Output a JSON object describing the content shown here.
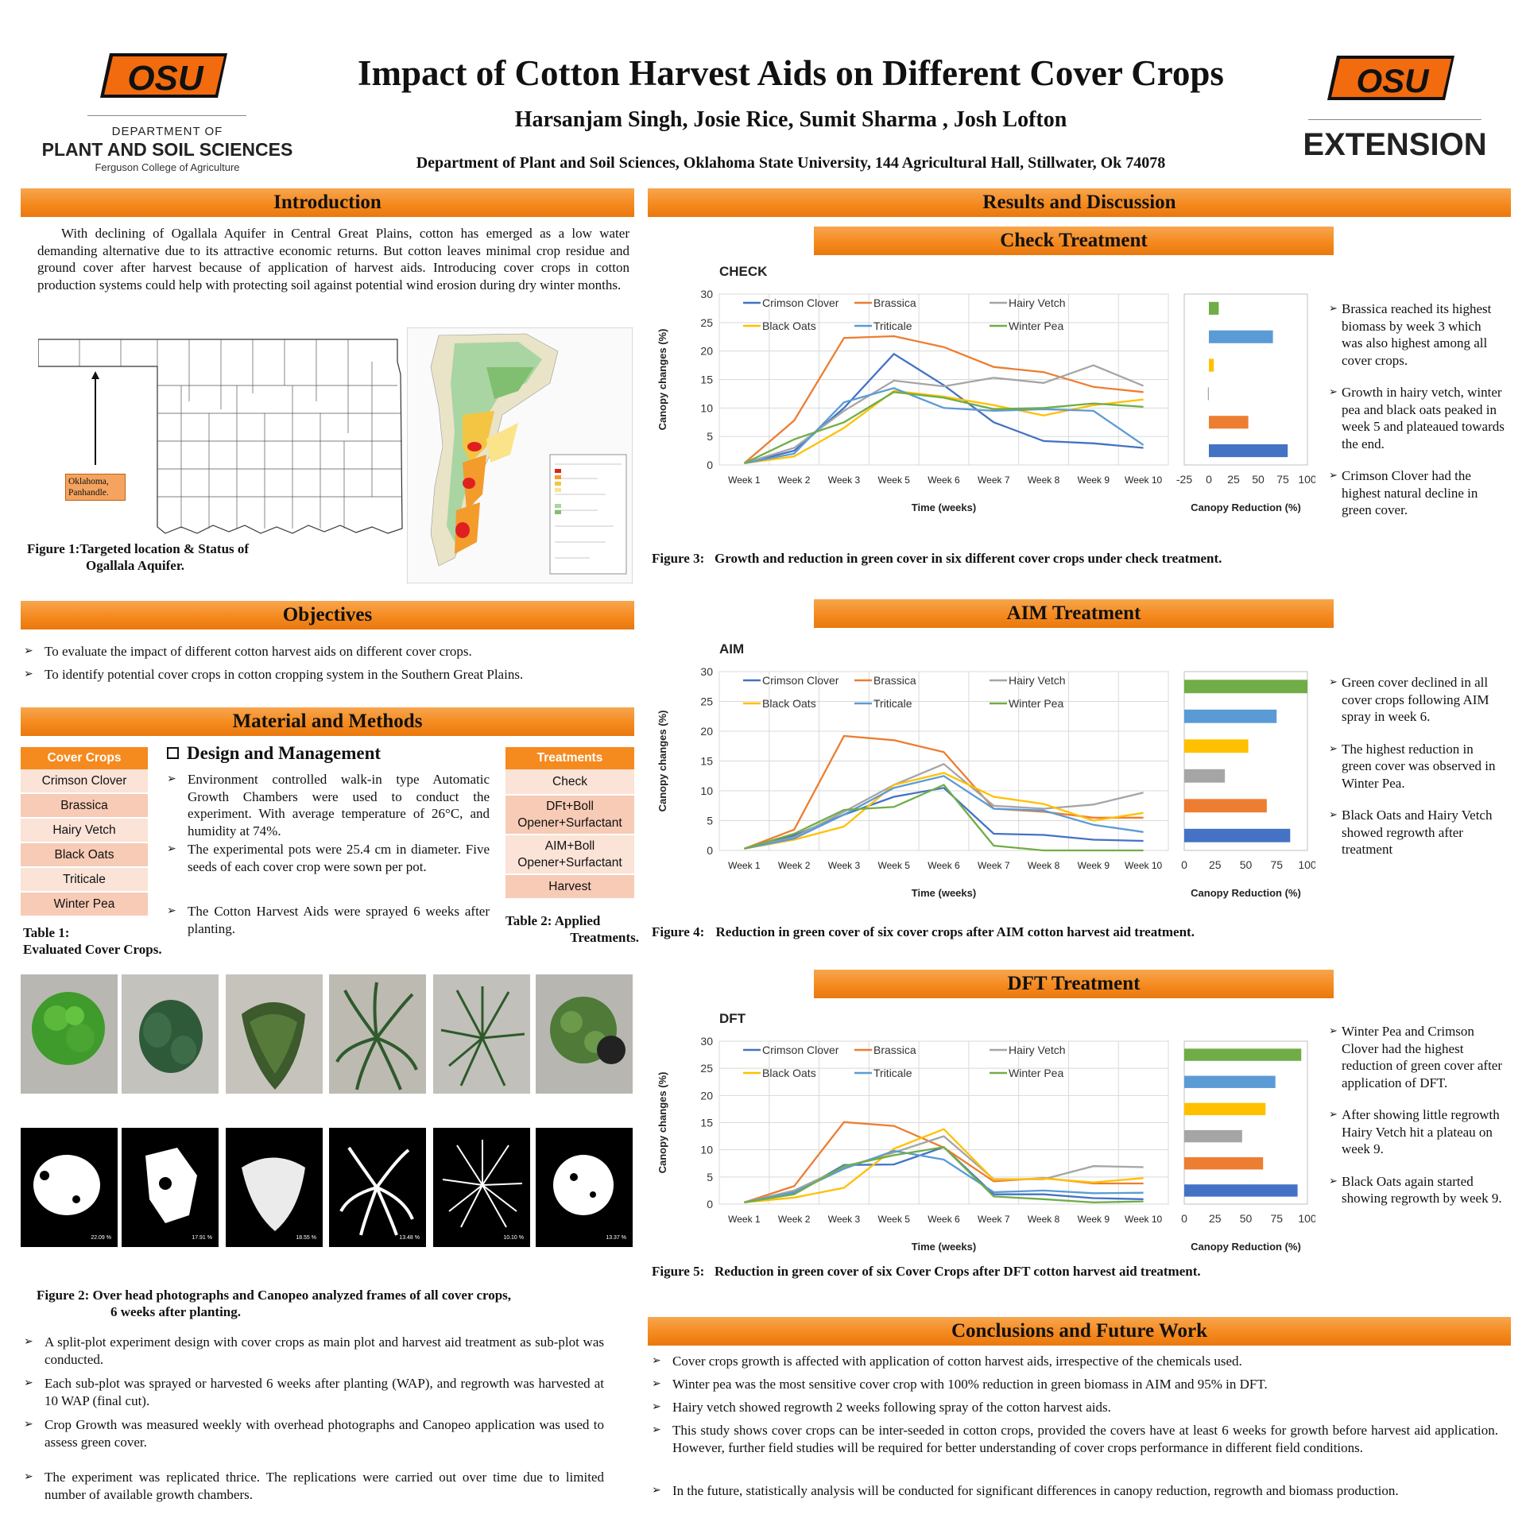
{
  "header": {
    "title": "Impact of Cotton Harvest Aids on Different Cover Crops",
    "authors": "Harsanjam Singh, Josie Rice, Sumit Sharma , Josh Lofton",
    "affiliation": "Department of Plant and Soil Sciences, Oklahoma State University, 144 Agricultural Hall, Stillwater, Ok 74078",
    "logo_left": {
      "mark": "OSU",
      "dept_line1": "DEPARTMENT OF",
      "dept_line2": "PLANT AND SOIL SCIENCES",
      "dept_line3": "Ferguson College of Agriculture"
    },
    "logo_right": {
      "mark": "OSU",
      "word": "EXTENSION"
    }
  },
  "colors": {
    "accent": "#f58a1f",
    "osu_orange": "#f26b0f",
    "chart_blue": "#4472c4",
    "chart_orange": "#ed7d31",
    "chart_gray": "#a5a5a5",
    "chart_yellow": "#ffc000",
    "chart_lightblue": "#5b9bd5",
    "chart_green": "#70ad47"
  },
  "introduction": {
    "heading": "Introduction",
    "text": "With declining of Ogallala Aquifer in Central Great Plains, cotton has emerged as a low water demanding alternative due to its attractive economic returns. But cotton leaves minimal crop residue and ground cover after harvest because of application of harvest aids. Introducing cover crops in cotton production systems could help with protecting soil against potential wind erosion during dry winter months.",
    "map_label": "Oklahoma, Panhandle.",
    "figure1_caption_line1": "Figure 1:Targeted location & Status of",
    "figure1_caption_line2": "Ogallala Aquifer."
  },
  "objectives": {
    "heading": "Objectives",
    "items": [
      "To evaluate the impact of different cotton harvest aids on different cover crops.",
      "To identify potential cover crops in cotton cropping system in the Southern Great Plains."
    ]
  },
  "methods": {
    "heading": "Material and Methods",
    "table1": {
      "header": "Cover Crops",
      "rows": [
        "Crimson Clover",
        "Brassica",
        "Hairy Vetch",
        "Black Oats",
        "Triticale",
        "Winter Pea"
      ],
      "caption_line1": "Table 1:",
      "caption_line2": "Evaluated Cover Crops."
    },
    "design_heading": "Design and Management",
    "design_items": [
      "Environment controlled walk-in type Automatic Growth Chambers were used to conduct the experiment. With average temperature of 26°C, and humidity at 74%.",
      "The experimental pots were 25.4 cm in diameter. Five seeds of each cover crop were sown per pot.",
      "The Cotton Harvest Aids were sprayed 6 weeks after planting."
    ],
    "table2": {
      "header": "Treatments",
      "rows": [
        "Check",
        "DFt+Boll Opener+Surfactant",
        "AIM+Boll Opener+Surfactant",
        "Harvest"
      ],
      "caption_line1": "Table 2: Applied",
      "caption_line2": "Treatments."
    },
    "canopeo_values": [
      "22.09 %",
      "17.91 %",
      "18.55 %",
      "13.48 %",
      "10.10 %",
      "13.37 %"
    ],
    "figure2_caption_line1": "Figure 2: Over head photographs and Canopeo analyzed frames of all cover crops,",
    "figure2_caption_line2": "6 weeks after planting.",
    "items": [
      "A split-plot experiment design with cover crops as main plot and harvest aid treatment as sub-plot was conducted.",
      "Each sub-plot was sprayed or harvested 6 weeks after planting (WAP), and regrowth was harvested at 10 WAP (final cut).",
      "Crop Growth was measured weekly with overhead photographs and Canopeo application was used to assess green cover.",
      "The experiment was replicated thrice. The replications were carried out over time due to limited number of available growth chambers."
    ]
  },
  "results": {
    "heading": "Results and Discussion",
    "check": {
      "heading": "Check Treatment",
      "figure_caption": "Figure 3:   Growth and reduction in green cover in six different cover crops under check treatment.",
      "notes": [
        "Brassica reached its highest biomass by week 3 which was also highest among all cover crops.",
        "Growth in hairy vetch, winter pea and black oats peaked in week 5 and plateaued towards the end.",
        "Crimson Clover had the highest natural decline in green cover."
      ]
    },
    "aim": {
      "heading": "AIM Treatment",
      "figure_caption_label": "Figure 4:",
      "figure_caption_text": "Reduction in green cover of six cover crops after AIM cotton harvest aid treatment.",
      "notes": [
        "Green cover declined in all cover crops following AIM spray in week 6.",
        "The highest reduction in green cover was observed in Winter Pea.",
        "Black Oats and Hairy Vetch showed regrowth after treatment"
      ]
    },
    "dft": {
      "heading": "DFT Treatment",
      "figure_caption": "Figure 5:   Reduction in green cover of six Cover Crops after DFT cotton harvest aid treatment.",
      "notes": [
        "Winter Pea and Crimson Clover had the highest reduction of green cover after application of DFT.",
        "After showing little regrowth Hairy Vetch hit a plateau on week 9.",
        "Black Oats again started showing regrowth by week 9."
      ]
    }
  },
  "conclusions": {
    "heading": "Conclusions and Future Work",
    "items": [
      "Cover crops growth is affected with application of cotton harvest aids, irrespective of the chemicals used.",
      "Winter pea was the most sensitive cover crop with 100% reduction in green biomass in AIM and 95% in DFT.",
      "Hairy vetch showed regrowth 2 weeks following spray of the cotton harvest aids.",
      "This study shows cover crops can be inter-seeded in cotton crops, provided the covers have at least 6 weeks for growth before harvest aid application. However, further field studies will be required for better understanding of cover crops performance in different field conditions.",
      "In the future, statistically analysis will be conducted for significant differences in canopy reduction, regrowth and biomass production."
    ]
  },
  "chart_data": [
    {
      "type": "line",
      "title": "CHECK",
      "xlabel": "Time (weeks)",
      "ylabel": "Canopy changes (%)",
      "ylim": [
        0,
        30
      ],
      "yticks": [
        0,
        5,
        10,
        15,
        20,
        25,
        30
      ],
      "grid": true,
      "legend": "top",
      "categories": [
        "Week 1",
        "Week 2",
        "Week 3",
        "Week 5",
        "Week 6",
        "Week 7",
        "Week 8",
        "Week 9",
        "Week 10"
      ],
      "series": [
        {
          "name": "Crimson Clover",
          "color": "#4472c4",
          "values": [
            0.3,
            2.5,
            10,
            19.5,
            14,
            7.5,
            4.2,
            3.8,
            3
          ]
        },
        {
          "name": "Brassica",
          "color": "#ed7d31",
          "values": [
            0.3,
            7.8,
            22.3,
            22.6,
            20.7,
            17.2,
            16.3,
            13.7,
            12.8
          ]
        },
        {
          "name": "Hairy Vetch",
          "color": "#a5a5a5",
          "values": [
            0.3,
            3,
            9.5,
            14.8,
            13.8,
            15.3,
            14.4,
            17.5,
            13.9
          ]
        },
        {
          "name": "Black Oats",
          "color": "#ffc000",
          "values": [
            0.3,
            1.5,
            6.5,
            13,
            12,
            10.5,
            8.7,
            10.5,
            11.5
          ]
        },
        {
          "name": "Triticale",
          "color": "#5b9bd5",
          "values": [
            0.3,
            2,
            11,
            13.5,
            10,
            9.5,
            9.8,
            9.5,
            3.5
          ]
        },
        {
          "name": "Winter Pea",
          "color": "#70ad47",
          "values": [
            0.3,
            4.5,
            7.5,
            12.8,
            11.8,
            9.8,
            10,
            10.8,
            10.2
          ]
        }
      ]
    },
    {
      "type": "bar",
      "orientation": "horizontal",
      "xlabel": "Canopy Reduction (%)",
      "xlim": [
        -25,
        100
      ],
      "xticks": [
        -25,
        0,
        25,
        50,
        75,
        100
      ],
      "categories": [
        "Winter Pea",
        "Triticale",
        "Black Oats",
        "Hairy Vetch",
        "Brassica",
        "Crimson Clover"
      ],
      "colors": [
        "#70ad47",
        "#5b9bd5",
        "#ffc000",
        "#a5a5a5",
        "#ed7d31",
        "#4472c4"
      ],
      "values": [
        10,
        65,
        5,
        -1,
        40,
        80
      ]
    },
    {
      "type": "line",
      "title": "AIM",
      "xlabel": "Time (weeks)",
      "ylabel": "Canopy changes (%)",
      "ylim": [
        0,
        30
      ],
      "yticks": [
        0,
        5,
        10,
        15,
        20,
        25,
        30
      ],
      "grid": true,
      "legend": "top",
      "categories": [
        "Week 1",
        "Week 2",
        "Week 3",
        "Week 5",
        "Week 6",
        "Week 7",
        "Week 8",
        "Week 9",
        "Week 10"
      ],
      "series": [
        {
          "name": "Crimson Clover",
          "color": "#4472c4",
          "values": [
            0.3,
            2.5,
            6,
            9,
            10.5,
            2.8,
            2.6,
            1.8,
            1.6
          ]
        },
        {
          "name": "Brassica",
          "color": "#ed7d31",
          "values": [
            0.3,
            3.5,
            19.2,
            18.5,
            16.5,
            7,
            6.5,
            5.5,
            5.5
          ]
        },
        {
          "name": "Hairy Vetch",
          "color": "#a5a5a5",
          "values": [
            0.3,
            2.2,
            6.5,
            11,
            14.5,
            7.5,
            7,
            7.7,
            9.7
          ]
        },
        {
          "name": "Black Oats",
          "color": "#ffc000",
          "values": [
            0.3,
            1.8,
            4,
            11,
            13,
            9,
            7.8,
            5,
            6.3
          ]
        },
        {
          "name": "Triticale",
          "color": "#5b9bd5",
          "values": [
            0.3,
            2,
            6,
            10.5,
            12.5,
            7,
            6.7,
            4.3,
            3.1
          ]
        },
        {
          "name": "Winter Pea",
          "color": "#70ad47",
          "values": [
            0.3,
            2.8,
            6.8,
            7.3,
            11,
            0.8,
            0,
            0,
            0
          ]
        }
      ]
    },
    {
      "type": "bar",
      "orientation": "horizontal",
      "xlabel": "Canopy Reduction (%)",
      "xlim": [
        0,
        100
      ],
      "xticks": [
        0,
        25,
        50,
        75,
        100
      ],
      "categories": [
        "Winter Pea",
        "Triticale",
        "Black Oats",
        "Hairy Vetch",
        "Brassica",
        "Crimson Clover"
      ],
      "colors": [
        "#70ad47",
        "#5b9bd5",
        "#ffc000",
        "#a5a5a5",
        "#ed7d31",
        "#4472c4"
      ],
      "values": [
        100,
        75,
        52,
        33,
        67,
        86
      ]
    },
    {
      "type": "line",
      "title": "DFT",
      "xlabel": "Time (weeks)",
      "ylabel": "Canopy changes (%)",
      "ylim": [
        0,
        30
      ],
      "yticks": [
        0,
        5,
        10,
        15,
        20,
        25,
        30
      ],
      "grid": true,
      "legend": "top",
      "categories": [
        "Week 1",
        "Week 2",
        "Week 3",
        "Week 5",
        "Week 6",
        "Week 7",
        "Week 8",
        "Week 9",
        "Week 10"
      ],
      "series": [
        {
          "name": "Crimson Clover",
          "color": "#4472c4",
          "values": [
            0.3,
            2,
            7.2,
            7.3,
            10.5,
            1.8,
            1.8,
            1.1,
            0.9
          ]
        },
        {
          "name": "Brassica",
          "color": "#ed7d31",
          "values": [
            0.3,
            3.3,
            15.1,
            14.4,
            10.4,
            4.2,
            4.8,
            3.8,
            3.8
          ]
        },
        {
          "name": "Hairy Vetch",
          "color": "#a5a5a5",
          "values": [
            0.3,
            2.5,
            6.8,
            9.5,
            12.5,
            4.6,
            4.6,
            7,
            6.8
          ]
        },
        {
          "name": "Black Oats",
          "color": "#ffc000",
          "values": [
            0.3,
            1.2,
            3,
            10.2,
            13.8,
            4.5,
            4.7,
            4,
            4.8
          ]
        },
        {
          "name": "Triticale",
          "color": "#5b9bd5",
          "values": [
            0.3,
            2.2,
            6.5,
            9.8,
            8.2,
            2.2,
            2.5,
            2,
            2.1
          ]
        },
        {
          "name": "Winter Pea",
          "color": "#70ad47",
          "values": [
            0.3,
            1.8,
            7,
            9,
            10.5,
            1.4,
            0.9,
            0.3,
            0.5
          ]
        }
      ]
    },
    {
      "type": "bar",
      "orientation": "horizontal",
      "xlabel": "Canopy Reduction (%)",
      "xlim": [
        0,
        100
      ],
      "xticks": [
        0,
        25,
        50,
        75,
        100
      ],
      "categories": [
        "Winter Pea",
        "Triticale",
        "Black Oats",
        "Hairy Vetch",
        "Brassica",
        "Crimson Clover"
      ],
      "colors": [
        "#70ad47",
        "#5b9bd5",
        "#ffc000",
        "#a5a5a5",
        "#ed7d31",
        "#4472c4"
      ],
      "values": [
        95,
        74,
        66,
        47,
        64,
        92
      ]
    }
  ]
}
